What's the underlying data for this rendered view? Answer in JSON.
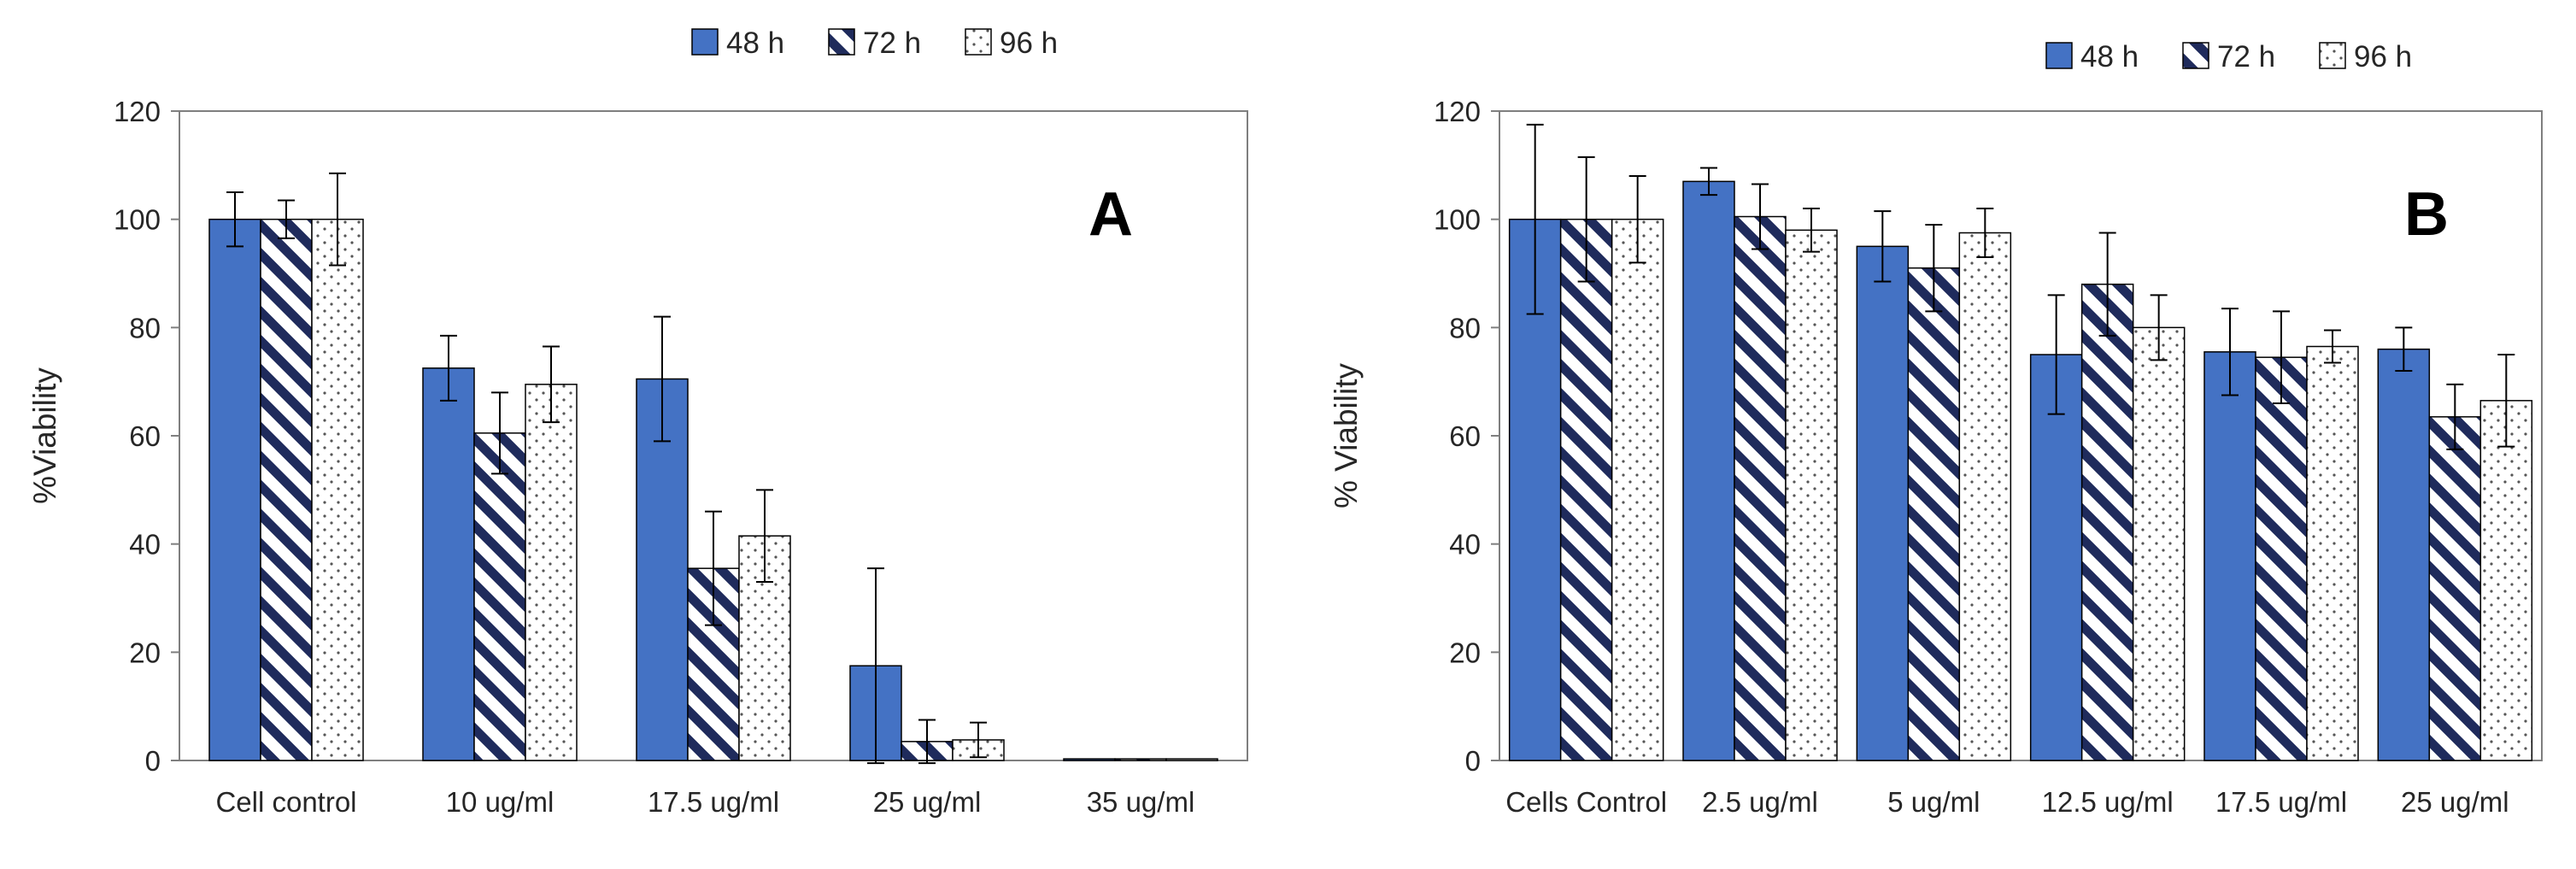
{
  "chart_data": [
    {
      "type": "bar",
      "panel_label": "A",
      "ylabel": "%Viability",
      "xlabel": "",
      "ylim": [
        0,
        120
      ],
      "yticks": [
        0,
        20,
        40,
        60,
        80,
        100,
        120
      ],
      "legend_position": "top",
      "categories": [
        "Cell control",
        "10 ug/ml",
        "17.5 ug/ml",
        "25 ug/ml",
        "35 ug/ml"
      ],
      "series": [
        {
          "name": "48 h",
          "pattern": "solid",
          "values": [
            100,
            72.5,
            70.5,
            17.5,
            0.3
          ],
          "errors": [
            5,
            6,
            11.5,
            18,
            0
          ]
        },
        {
          "name": "72 h",
          "pattern": "diagonal-stripes",
          "values": [
            100,
            60.5,
            35.5,
            3.5,
            0.3
          ],
          "errors": [
            3.5,
            7.5,
            10.5,
            4,
            0
          ]
        },
        {
          "name": "96 h",
          "pattern": "dots",
          "values": [
            100,
            69.5,
            41.5,
            3.8,
            0.3
          ],
          "errors": [
            8.5,
            7,
            8.5,
            3.2,
            0
          ]
        }
      ]
    },
    {
      "type": "bar",
      "panel_label": "B",
      "ylabel": "% Viability",
      "xlabel": "",
      "ylim": [
        0,
        120
      ],
      "yticks": [
        0,
        20,
        40,
        60,
        80,
        100,
        120
      ],
      "legend_position": "top-right",
      "categories": [
        "Cells Control",
        "2.5 ug/ml",
        "5 ug/ml",
        "12.5 ug/ml",
        "17.5 ug/ml",
        "25 ug/ml"
      ],
      "series": [
        {
          "name": "48 h",
          "pattern": "solid",
          "values": [
            100,
            107,
            95,
            75,
            75.5,
            76
          ],
          "errors": [
            17.5,
            2.5,
            6.5,
            11,
            8,
            4
          ]
        },
        {
          "name": "72 h",
          "pattern": "diagonal-stripes",
          "values": [
            100,
            100.5,
            91,
            88,
            74.5,
            63.5
          ],
          "errors": [
            11.5,
            6,
            8,
            9.5,
            8.5,
            6
          ]
        },
        {
          "name": "96 h",
          "pattern": "dots",
          "values": [
            100,
            98,
            97.5,
            80,
            76.5,
            66.5
          ],
          "errors": [
            8,
            4,
            4.5,
            6,
            3,
            8.5
          ]
        }
      ]
    }
  ],
  "colors": {
    "bar_solid": "#4472c4",
    "stripe": "#1f2b5c",
    "dot": "#555555",
    "axis": "#7f7f7f",
    "error": "#000000"
  }
}
